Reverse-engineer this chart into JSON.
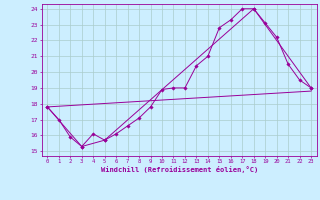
{
  "xlabel": "Windchill (Refroidissement éolien,°C)",
  "background_color": "#cceeff",
  "grid_color": "#aacccc",
  "line_color": "#990099",
  "xlim": [
    -0.5,
    23.5
  ],
  "ylim": [
    14.7,
    24.3
  ],
  "yticks": [
    15,
    16,
    17,
    18,
    19,
    20,
    21,
    22,
    23,
    24
  ],
  "xticks": [
    0,
    1,
    2,
    3,
    4,
    5,
    6,
    7,
    8,
    9,
    10,
    11,
    12,
    13,
    14,
    15,
    16,
    17,
    18,
    19,
    20,
    21,
    22,
    23
  ],
  "series1": [
    [
      0,
      17.8
    ],
    [
      1,
      17.0
    ],
    [
      2,
      15.9
    ],
    [
      3,
      15.3
    ],
    [
      4,
      16.1
    ],
    [
      5,
      15.7
    ],
    [
      6,
      16.1
    ],
    [
      7,
      16.6
    ],
    [
      8,
      17.1
    ],
    [
      9,
      17.8
    ],
    [
      10,
      18.9
    ],
    [
      11,
      19.0
    ],
    [
      12,
      19.0
    ],
    [
      13,
      20.4
    ],
    [
      14,
      21.0
    ],
    [
      15,
      22.8
    ],
    [
      16,
      23.3
    ],
    [
      17,
      24.0
    ],
    [
      18,
      24.0
    ],
    [
      19,
      23.1
    ],
    [
      20,
      22.2
    ],
    [
      21,
      20.5
    ],
    [
      22,
      19.5
    ],
    [
      23,
      19.0
    ]
  ],
  "series2": [
    [
      0,
      17.8
    ],
    [
      3,
      15.3
    ],
    [
      5,
      15.7
    ],
    [
      18,
      24.0
    ],
    [
      23,
      19.0
    ]
  ],
  "series3": [
    [
      0,
      17.8
    ],
    [
      23,
      18.8
    ]
  ]
}
